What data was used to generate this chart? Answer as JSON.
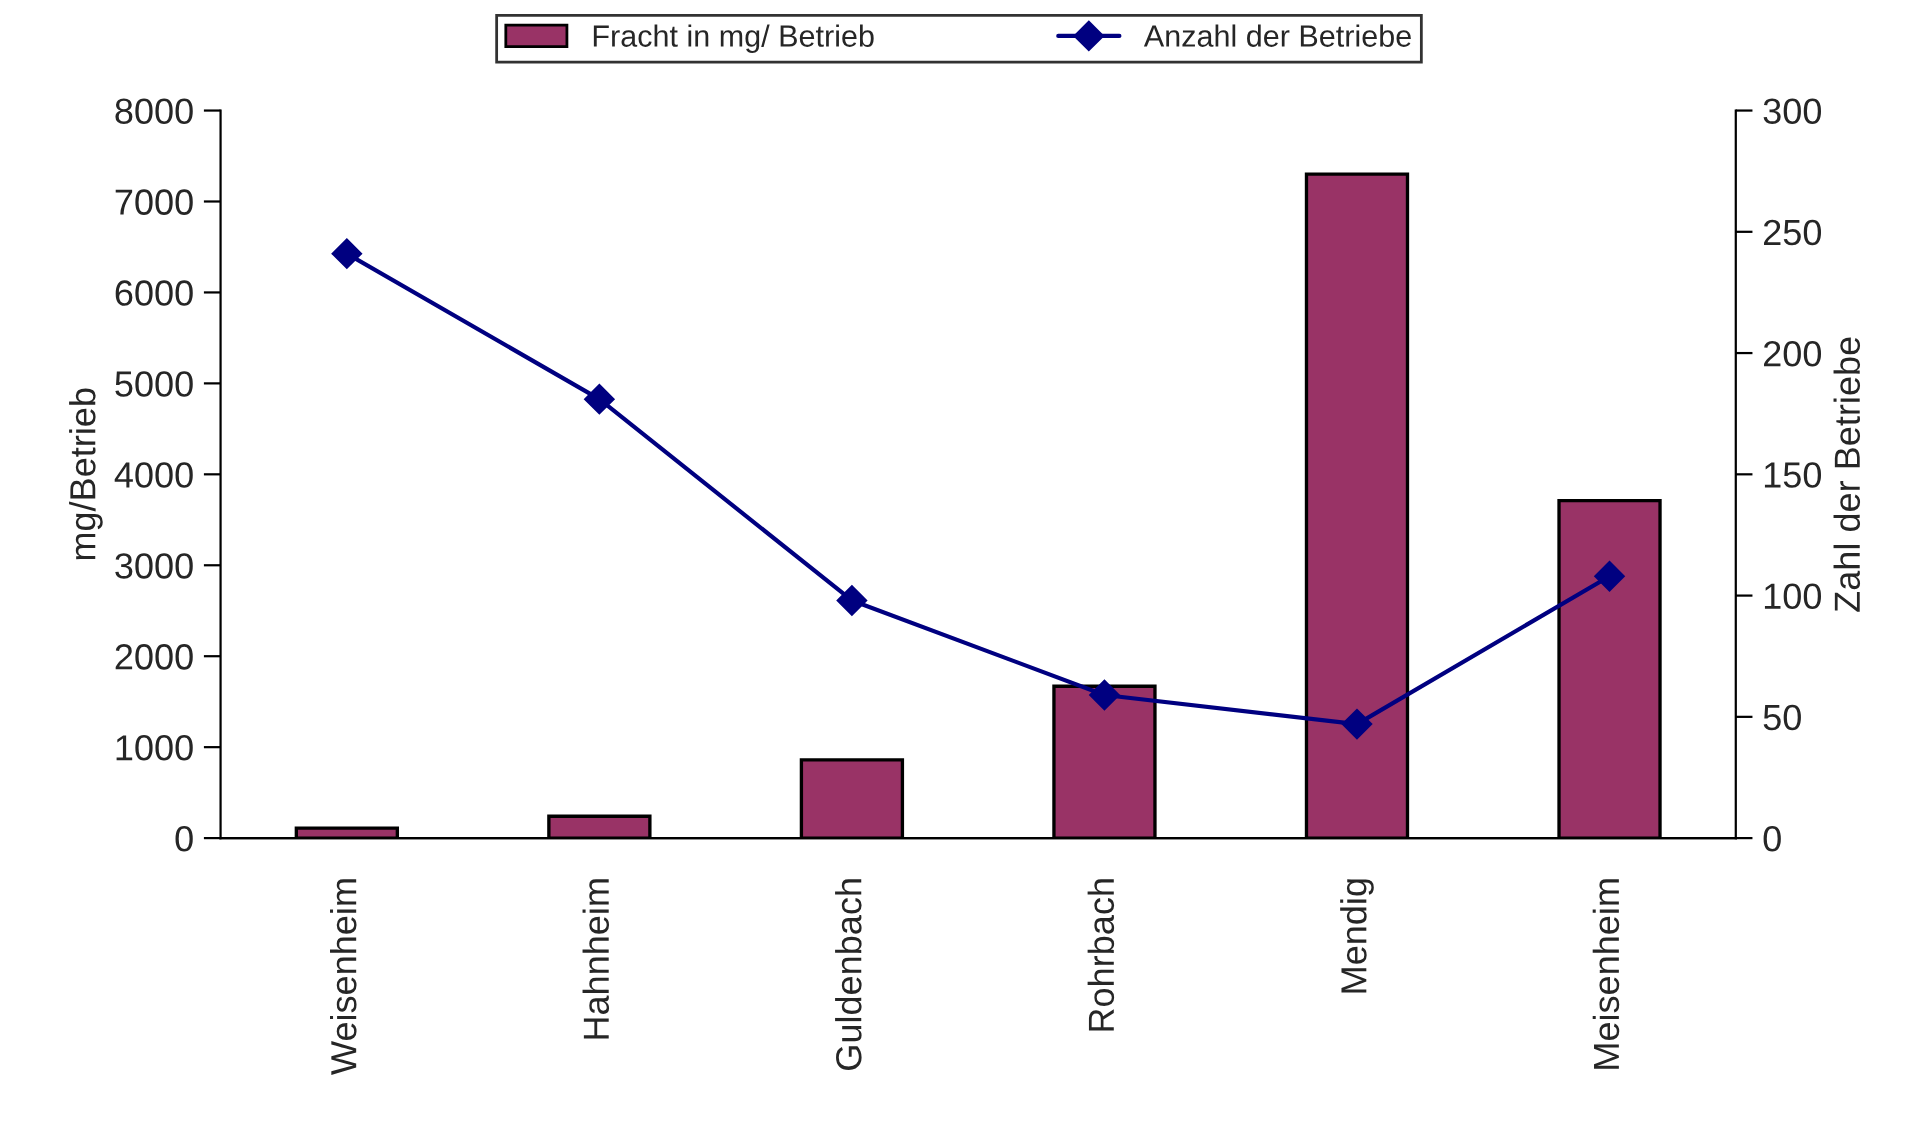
{
  "chart_data": {
    "type": "bar",
    "categories": [
      "Weisenheim",
      "Hahnheim",
      "Guldenbach",
      "Rohrbach",
      "Mendig",
      "Meisenheim"
    ],
    "series": [
      {
        "name": "Fracht in mg/ Betrieb",
        "color": "#993366",
        "values": [
          110,
          240,
          860,
          1670,
          7300,
          3710
        ]
      },
      {
        "name": "Anzahl der Betriebe",
        "color": "#000080",
        "type": "line",
        "axis": "y2",
        "marker": "diamond",
        "values": [
          241,
          181,
          98,
          59,
          47,
          108
        ]
      }
    ],
    "ylabel": "mg/Betrieb",
    "y2label": "Zahl der Betriebe",
    "ylim": [
      0,
      8000
    ],
    "yticks": [
      0,
      1000,
      2000,
      3000,
      4000,
      5000,
      6000,
      7000,
      8000
    ],
    "y2lim": [
      0,
      300
    ],
    "y2ticks": [
      0,
      50,
      100,
      150,
      200,
      250,
      300
    ],
    "grid": false,
    "legend": "top"
  }
}
